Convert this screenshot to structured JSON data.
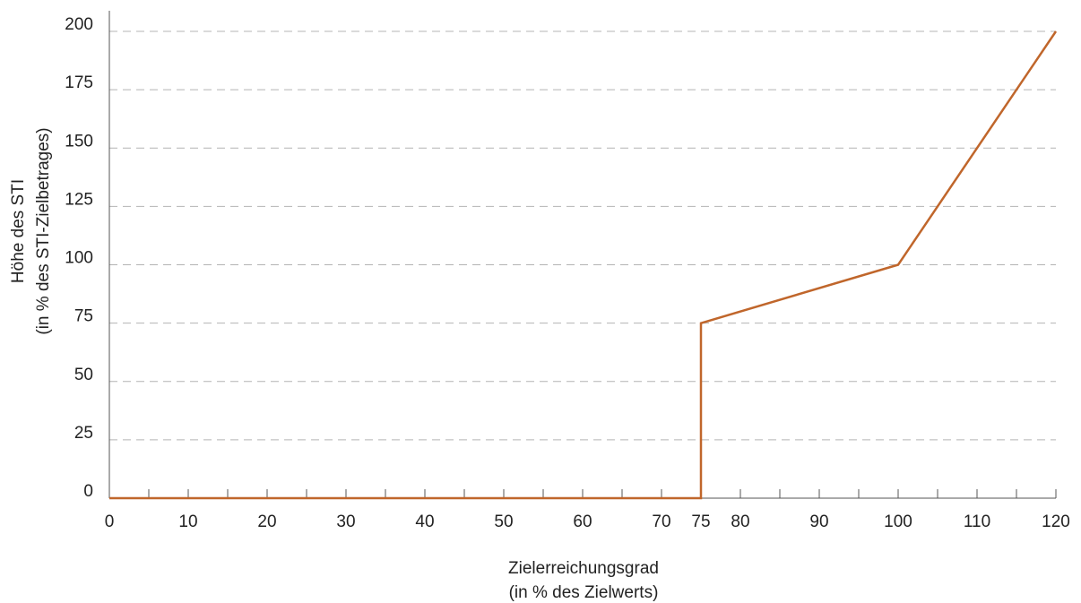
{
  "chart_data": {
    "type": "line",
    "title": "",
    "xlabel": [
      "Zielerreichungsgrad",
      "(in % des Zielwerts)"
    ],
    "ylabel": [
      "Höhe des STI",
      "(in % des STI-Zielbetrages)"
    ],
    "xlim": [
      0,
      120
    ],
    "ylim": [
      0,
      200
    ],
    "x_ticks": [
      0,
      10,
      20,
      30,
      40,
      50,
      60,
      70,
      75,
      80,
      90,
      100,
      110,
      120
    ],
    "x_minor_ticks": [
      0,
      5,
      10,
      15,
      20,
      25,
      30,
      35,
      40,
      45,
      50,
      55,
      60,
      65,
      70,
      75,
      80,
      85,
      90,
      95,
      100,
      105,
      110,
      115,
      120
    ],
    "y_ticks": [
      0,
      25,
      50,
      75,
      100,
      125,
      150,
      175,
      200
    ],
    "grid": "horizontal-dashed",
    "series": [
      {
        "x": [
          0,
          75,
          75,
          100,
          120
        ],
        "y": [
          0,
          0,
          75,
          100,
          200
        ]
      }
    ],
    "colors": {
      "line": "#c0662b",
      "grid": "#b4b4b4",
      "axis": "#555555"
    }
  }
}
